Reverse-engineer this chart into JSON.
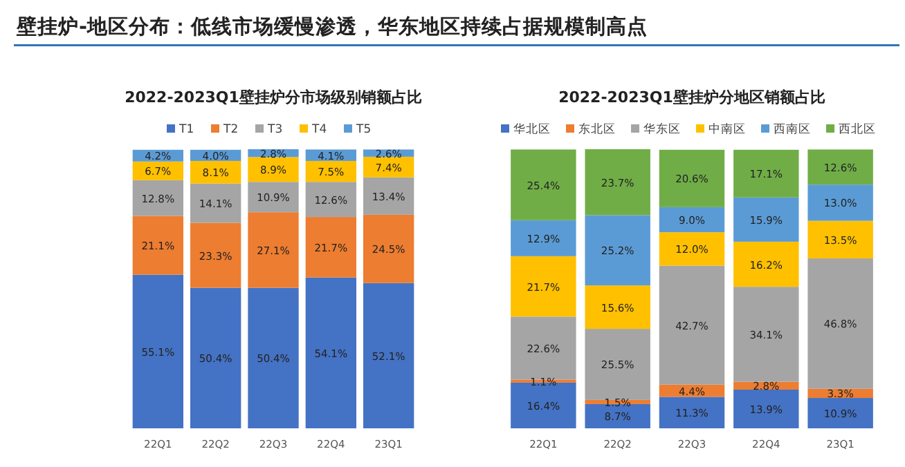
{
  "chart_data": [
    {
      "type": "bar",
      "title": "2022-2023Q1壁挂炉分市场级别销额占比",
      "annotations": [
        "壁挂炉-地区分布：低线市场缓慢渗透，华东地区持续占据规模制高点"
      ],
      "categories": [
        "22Q1",
        "22Q2",
        "22Q3",
        "22Q4",
        "23Q1"
      ],
      "stacked": true,
      "legend": "top",
      "series": [
        {
          "name": "T1",
          "color": "#4472c4",
          "values": [
            55.1,
            50.4,
            50.4,
            54.1,
            52.1
          ],
          "value_labels": [
            "55.1%",
            "50.4%",
            "50.4%",
            "54.1%",
            "52.1%"
          ]
        },
        {
          "name": "T2",
          "color": "#ed7d31",
          "values": [
            21.1,
            23.3,
            27.1,
            21.7,
            24.5
          ],
          "value_labels": [
            "21.1%",
            "23.3%",
            "27.1%",
            "21.7%",
            "24.5%"
          ]
        },
        {
          "name": "T3",
          "color": "#a5a5a5",
          "values": [
            12.8,
            14.1,
            10.9,
            12.6,
            13.4
          ],
          "value_labels": [
            "12.8%",
            "14.1%",
            "10.9%",
            "12.6%",
            "13.4%"
          ]
        },
        {
          "name": "T4",
          "color": "#ffc000",
          "values": [
            6.7,
            8.1,
            8.9,
            7.5,
            7.4
          ],
          "value_labels": [
            "6.7%",
            "8.1%",
            "8.9%",
            "7.5%",
            "7.4%"
          ]
        },
        {
          "name": "T5",
          "color": "#5b9bd5",
          "values": [
            4.2,
            4.0,
            2.8,
            4.1,
            2.6
          ],
          "value_labels": [
            "4.2%",
            "4.0%",
            "2.8%",
            "4.1%",
            "2.6%"
          ]
        }
      ]
    },
    {
      "type": "bar",
      "title": "2022-2023Q1壁挂炉分地区销额占比",
      "categories": [
        "22Q1",
        "22Q2",
        "22Q3",
        "22Q4",
        "23Q1"
      ],
      "stacked": true,
      "legend": "top",
      "series": [
        {
          "name": "华北区",
          "color": "#4472c4",
          "values": [
            16.4,
            8.7,
            11.3,
            13.9,
            10.9
          ],
          "value_labels": [
            "16.4%",
            "8.7%",
            "11.3%",
            "13.9%",
            "10.9%"
          ]
        },
        {
          "name": "东北区",
          "color": "#ed7d31",
          "values": [
            1.1,
            1.5,
            4.4,
            2.8,
            3.3
          ],
          "value_labels": [
            "1.1%",
            "1.5%",
            "4.4%",
            "2.8%",
            "3.3%"
          ]
        },
        {
          "name": "华东区",
          "color": "#a5a5a5",
          "values": [
            22.6,
            25.5,
            42.7,
            34.1,
            46.8
          ],
          "value_labels": [
            "22.6%",
            "25.5%",
            "42.7%",
            "34.1%",
            "46.8%"
          ]
        },
        {
          "name": "中南区",
          "color": "#ffc000",
          "values": [
            21.7,
            15.6,
            12.0,
            16.2,
            13.5
          ],
          "value_labels": [
            "21.7%",
            "15.6%",
            "12.0%",
            "16.2%",
            "13.5%"
          ]
        },
        {
          "name": "西南区",
          "color": "#5b9bd5",
          "values": [
            12.9,
            25.2,
            9.0,
            15.9,
            13.0
          ],
          "value_labels": [
            "12.9%",
            "25.2%",
            "9.0%",
            "15.9%",
            "13.0%"
          ]
        },
        {
          "name": "西北区",
          "color": "#70ad47",
          "values": [
            25.4,
            23.7,
            20.6,
            17.1,
            12.6
          ],
          "value_labels": [
            "25.4%",
            "23.7%",
            "20.6%",
            "17.1%",
            "12.6%"
          ]
        }
      ]
    }
  ]
}
